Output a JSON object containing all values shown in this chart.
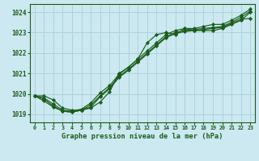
{
  "title": "Graphe pression niveau de la mer (hPa)",
  "bg_color": "#cce8f0",
  "line_color": "#1a5c1a",
  "marker_color": "#1a5c1a",
  "grid_color": "#aad4dd",
  "xlim": [
    -0.5,
    23.5
  ],
  "ylim": [
    1018.6,
    1024.4
  ],
  "yticks": [
    1019,
    1020,
    1021,
    1022,
    1023,
    1024
  ],
  "xticks": [
    0,
    1,
    2,
    3,
    4,
    5,
    6,
    7,
    8,
    9,
    10,
    11,
    12,
    13,
    14,
    15,
    16,
    17,
    18,
    19,
    20,
    21,
    22,
    23
  ],
  "series": [
    [
      1019.9,
      1019.9,
      1019.7,
      1019.3,
      1019.2,
      1019.2,
      1019.3,
      1019.6,
      1020.1,
      1021.0,
      1021.3,
      1021.7,
      1022.5,
      1022.9,
      1023.0,
      1022.9,
      1023.2,
      1023.1,
      1023.1,
      1023.1,
      1023.2,
      1023.4,
      1023.6,
      1024.0
    ],
    [
      1019.9,
      1019.65,
      1019.35,
      1019.15,
      1019.1,
      1019.2,
      1019.35,
      1019.85,
      1020.25,
      1020.8,
      1021.15,
      1021.55,
      1021.95,
      1022.35,
      1022.75,
      1022.95,
      1023.05,
      1023.1,
      1023.15,
      1023.2,
      1023.25,
      1023.45,
      1023.65,
      1023.7
    ],
    [
      1019.9,
      1019.75,
      1019.4,
      1019.15,
      1019.1,
      1019.2,
      1019.45,
      1019.9,
      1020.3,
      1020.85,
      1021.2,
      1021.6,
      1022.0,
      1022.4,
      1022.8,
      1023.0,
      1023.1,
      1023.15,
      1023.2,
      1023.25,
      1023.3,
      1023.5,
      1023.75,
      1024.05
    ],
    [
      1019.9,
      1019.8,
      1019.5,
      1019.2,
      1019.15,
      1019.25,
      1019.55,
      1020.05,
      1020.4,
      1020.95,
      1021.3,
      1021.7,
      1022.1,
      1022.5,
      1022.9,
      1023.1,
      1023.2,
      1023.2,
      1023.3,
      1023.4,
      1023.4,
      1023.6,
      1023.85,
      1024.15
    ]
  ]
}
